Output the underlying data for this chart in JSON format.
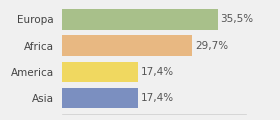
{
  "categories": [
    "Europa",
    "Africa",
    "America",
    "Asia"
  ],
  "values": [
    35.5,
    29.7,
    17.4,
    17.4
  ],
  "labels": [
    "35,5%",
    "29,7%",
    "17,4%",
    "17,4%"
  ],
  "bar_colors": [
    "#a8c08a",
    "#e8b882",
    "#f0d860",
    "#7b8fc0"
  ],
  "background_color": "#f0f0f0",
  "xlim": [
    0,
    42
  ],
  "bar_height": 0.78,
  "label_fontsize": 7.5,
  "category_fontsize": 7.5,
  "label_color": "#555555",
  "category_color": "#444444"
}
